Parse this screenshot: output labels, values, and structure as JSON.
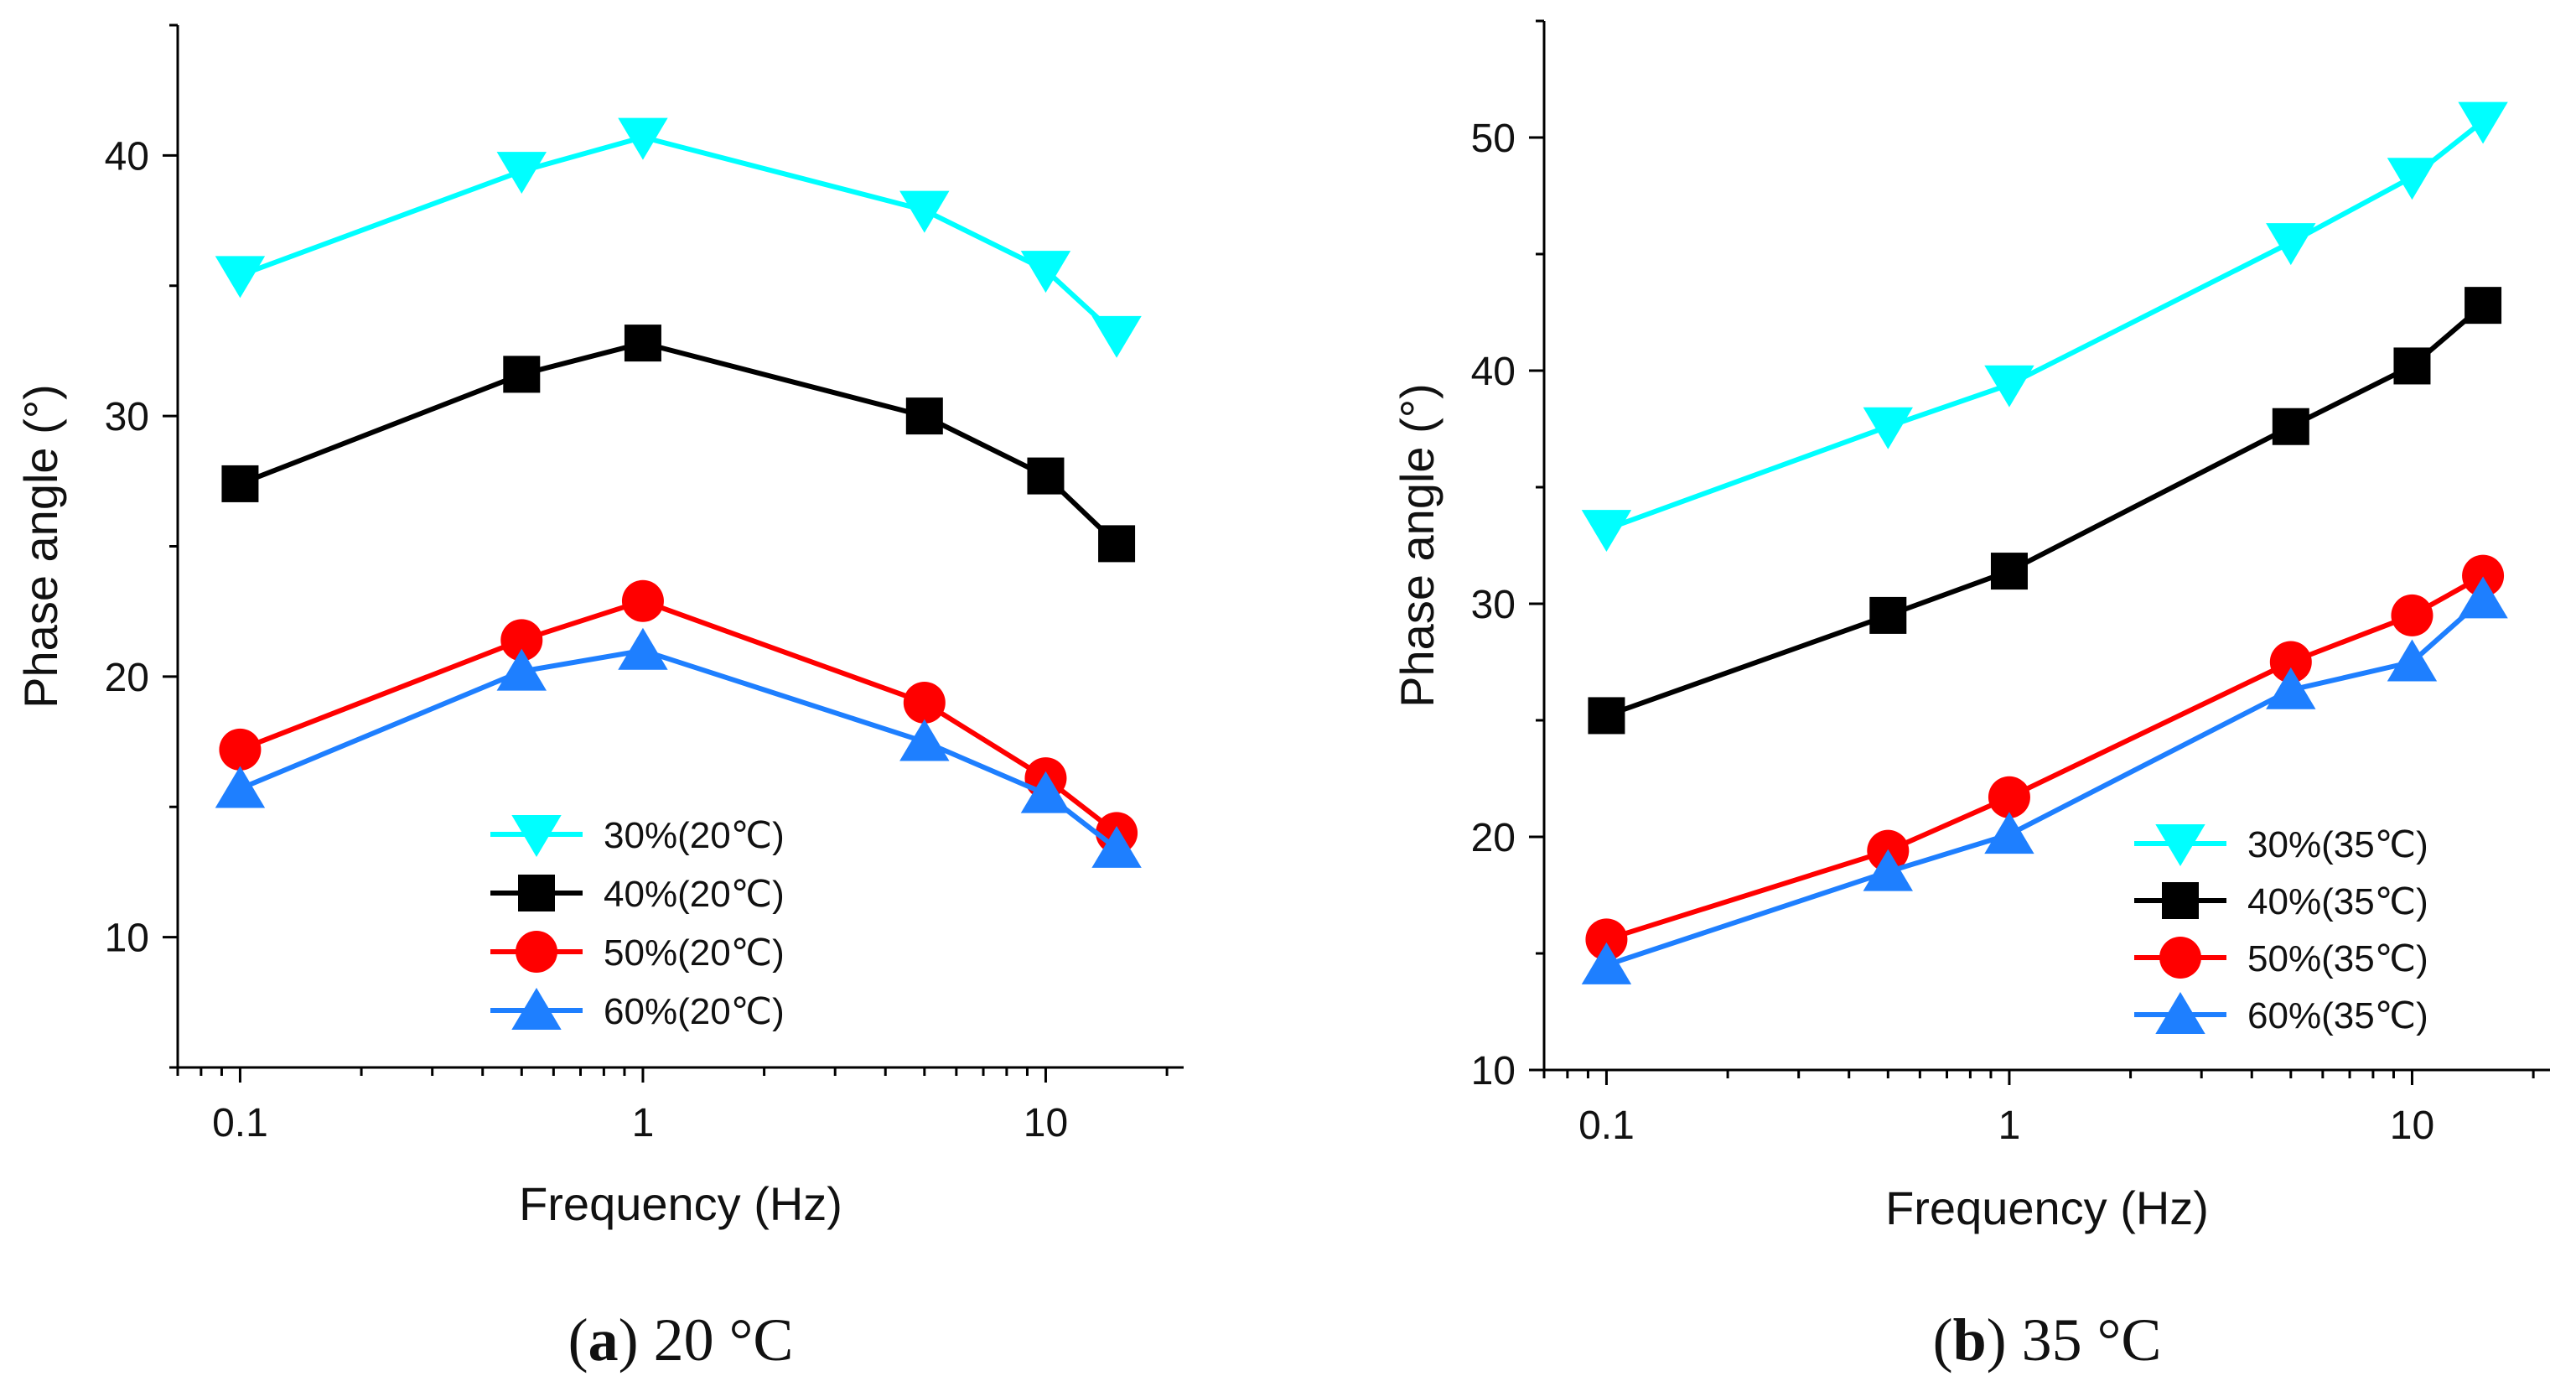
{
  "chart_data": [
    {
      "type": "line",
      "panel": "a",
      "caption_letter": "a",
      "caption_text": "20 °C",
      "xlabel": "Frequency (Hz)",
      "ylabel": "Phase angle (°)",
      "xscale": "log",
      "xlim": [
        0.07,
        22
      ],
      "ylim": [
        5,
        45
      ],
      "xticks": [
        0.1,
        1,
        10
      ],
      "xtick_labels": [
        "0.1",
        "1",
        "10"
      ],
      "yticks": [
        10,
        20,
        30,
        40
      ],
      "ytick_labels": [
        "10",
        "20",
        "30",
        "40"
      ],
      "legend_position": "bottom-right",
      "x": [
        0.1,
        0.5,
        1,
        5,
        10,
        15
      ],
      "series": [
        {
          "name": "30%(20℃)",
          "color": "#00ffff",
          "marker": "triangle-down",
          "values": [
            35.4,
            39.4,
            40.7,
            37.9,
            35.6,
            33.1
          ]
        },
        {
          "name": "40%(20℃)",
          "color": "#000000",
          "marker": "square",
          "values": [
            27.4,
            31.6,
            32.8,
            30.0,
            27.7,
            25.1
          ]
        },
        {
          "name": "50%(20℃)",
          "color": "#ff0000",
          "marker": "circle",
          "values": [
            17.2,
            21.4,
            22.9,
            19.0,
            16.1,
            14.0
          ]
        },
        {
          "name": "60%(20℃)",
          "color": "#1e7fff",
          "marker": "triangle-up",
          "values": [
            15.7,
            20.2,
            21.0,
            17.5,
            15.5,
            13.4
          ]
        }
      ]
    },
    {
      "type": "line",
      "panel": "b",
      "caption_letter": "b",
      "caption_text": "35 °C",
      "xlabel": "Frequency (Hz)",
      "ylabel": "Phase angle (°)",
      "xscale": "log",
      "xlim": [
        0.07,
        22
      ],
      "ylim": [
        10,
        55
      ],
      "xticks": [
        0.1,
        1,
        10
      ],
      "xtick_labels": [
        "0.1",
        "1",
        "10"
      ],
      "yticks": [
        10,
        20,
        30,
        40,
        50
      ],
      "ytick_labels": [
        "10",
        "20",
        "30",
        "40",
        "50"
      ],
      "legend_position": "bottom-right",
      "x": [
        0.1,
        0.5,
        1,
        5,
        10,
        15
      ],
      "series": [
        {
          "name": "30%(35℃)",
          "color": "#00ffff",
          "marker": "triangle-down",
          "values": [
            33.2,
            37.6,
            39.4,
            45.5,
            48.3,
            50.7
          ]
        },
        {
          "name": "40%(35℃)",
          "color": "#000000",
          "marker": "square",
          "values": [
            25.2,
            29.5,
            31.4,
            37.6,
            40.2,
            42.8
          ]
        },
        {
          "name": "50%(35℃)",
          "color": "#ff0000",
          "marker": "circle",
          "values": [
            15.6,
            19.4,
            21.7,
            27.5,
            29.5,
            31.2
          ]
        },
        {
          "name": "60%(35℃)",
          "color": "#1e7fff",
          "marker": "triangle-up",
          "values": [
            14.5,
            18.5,
            20.1,
            26.3,
            27.5,
            30.2
          ]
        }
      ]
    }
  ]
}
